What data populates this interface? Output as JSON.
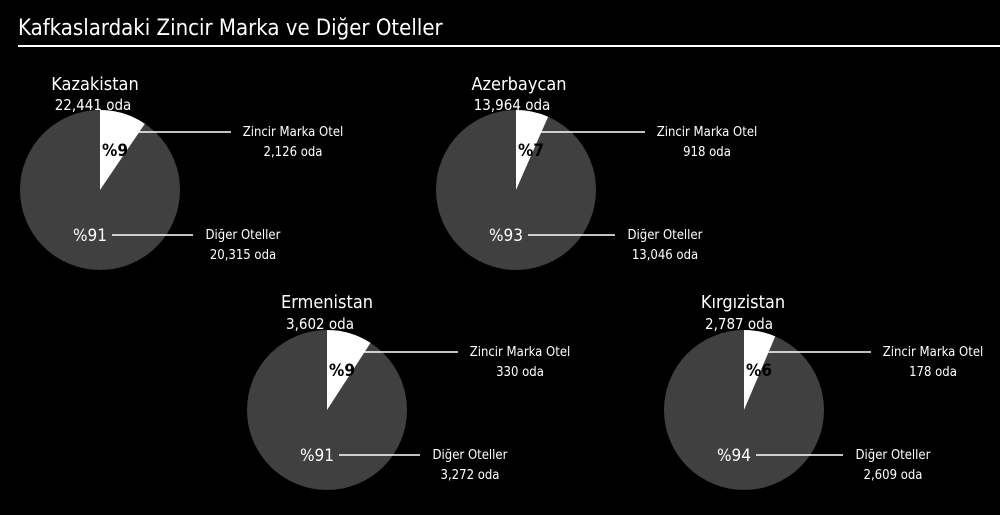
{
  "title": "Kafkaslardaki Zincir Marka ve Diğer Oteller",
  "colors": {
    "background": "#000000",
    "chain": "#ffffff",
    "other": "#404040",
    "text": "#ffffff",
    "chain_pct_text": "#000000"
  },
  "chart_data": [
    {
      "type": "pie",
      "title": "Kazakistan",
      "subtitle": "22,441 oda",
      "slices": [
        {
          "label": "Zincir Marka Otel",
          "value": 2126,
          "value_text": "2,126 oda",
          "percent_text": "%9"
        },
        {
          "label": "Diğer Oteller",
          "value": 20315,
          "value_text": "20,315 oda",
          "percent_text": "%91"
        }
      ]
    },
    {
      "type": "pie",
      "title": "Azerbaycan",
      "subtitle": "13,964 oda",
      "slices": [
        {
          "label": "Zincir Marka Otel",
          "value": 918,
          "value_text": "918 oda",
          "percent_text": "%7"
        },
        {
          "label": "Diğer Oteller",
          "value": 13046,
          "value_text": "13,046 oda",
          "percent_text": "%93"
        }
      ]
    },
    {
      "type": "pie",
      "title": "Ermenistan",
      "subtitle": "3,602 oda",
      "slices": [
        {
          "label": "Zincir Marka Otel",
          "value": 330,
          "value_text": "330 oda",
          "percent_text": "%9"
        },
        {
          "label": "Diğer Oteller",
          "value": 3272,
          "value_text": "3,272 oda",
          "percent_text": "%91"
        }
      ]
    },
    {
      "type": "pie",
      "title": "Kırgızistan",
      "subtitle": "2,787 oda",
      "slices": [
        {
          "label": "Zincir Marka Otel",
          "value": 178,
          "value_text": "178 oda",
          "percent_text": "%6"
        },
        {
          "label": "Diğer Oteller",
          "value": 2609,
          "value_text": "2,609 oda",
          "percent_text": "%94"
        }
      ]
    }
  ]
}
